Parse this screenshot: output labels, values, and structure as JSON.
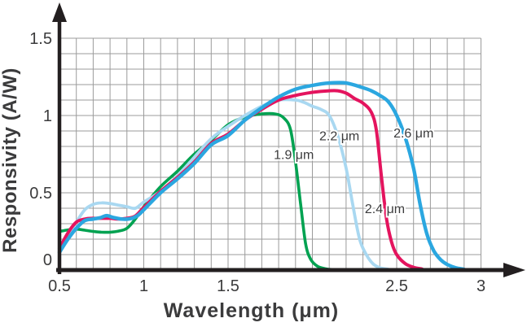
{
  "chart_data": {
    "type": "line",
    "title": "",
    "xlabel": "Wavelength (μm)",
    "ylabel": "Responsivity (A/W)",
    "xlim": [
      0.5,
      3.0
    ],
    "ylim": [
      0,
      1.5
    ],
    "grid": {
      "visible": true,
      "step_x": 0.1,
      "step_y": 0.1,
      "color": "#9b9b9b"
    },
    "axis_color": "#231f20",
    "text_color": "#3b3b3c",
    "x_ticks": [
      {
        "value": 0.5,
        "text": "0.5"
      },
      {
        "value": 1.0,
        "text": "1"
      },
      {
        "value": 1.5,
        "text": "1.5"
      },
      {
        "value": 2.5,
        "text": "2.5"
      },
      {
        "value": 3.0,
        "text": "3"
      }
    ],
    "y_ticks": [
      {
        "value": 0,
        "text": "0"
      },
      {
        "value": 0.5,
        "text": "0.5"
      },
      {
        "value": 1.0,
        "text": "1"
      },
      {
        "value": 1.5,
        "text": "1.5"
      }
    ],
    "series": [
      {
        "name": "1.9 μm",
        "color": "#00a251",
        "label": {
          "text": "1.9 μm",
          "x": 1.89,
          "y": 0.75
        },
        "points": [
          [
            0.5,
            0.25
          ],
          [
            0.55,
            0.26
          ],
          [
            0.6,
            0.265
          ],
          [
            0.65,
            0.258
          ],
          [
            0.7,
            0.25
          ],
          [
            0.75,
            0.245
          ],
          [
            0.8,
            0.245
          ],
          [
            0.85,
            0.252
          ],
          [
            0.9,
            0.27
          ],
          [
            0.95,
            0.33
          ],
          [
            1.0,
            0.41
          ],
          [
            1.1,
            0.54
          ],
          [
            1.2,
            0.64
          ],
          [
            1.3,
            0.75
          ],
          [
            1.4,
            0.84
          ],
          [
            1.5,
            0.94
          ],
          [
            1.6,
            0.99
          ],
          [
            1.7,
            1.01
          ],
          [
            1.78,
            1.01
          ],
          [
            1.83,
            0.985
          ],
          [
            1.87,
            0.91
          ],
          [
            1.9,
            0.7
          ],
          [
            1.93,
            0.43
          ],
          [
            1.96,
            0.17
          ],
          [
            1.99,
            0.07
          ],
          [
            2.03,
            0.025
          ],
          [
            2.08,
            0.008
          ],
          [
            2.12,
            0.003
          ]
        ]
      },
      {
        "name": "2.2 μm",
        "color": "#a9d8f1",
        "label": {
          "text": "2.2 μm",
          "x": 2.16,
          "y": 0.87
        },
        "points": [
          [
            0.5,
            0.12
          ],
          [
            0.55,
            0.225
          ],
          [
            0.6,
            0.31
          ],
          [
            0.65,
            0.39
          ],
          [
            0.7,
            0.425
          ],
          [
            0.75,
            0.435
          ],
          [
            0.8,
            0.43
          ],
          [
            0.85,
            0.42
          ],
          [
            0.9,
            0.41
          ],
          [
            0.95,
            0.4
          ],
          [
            1.0,
            0.44
          ],
          [
            1.1,
            0.51
          ],
          [
            1.2,
            0.61
          ],
          [
            1.3,
            0.73
          ],
          [
            1.4,
            0.85
          ],
          [
            1.5,
            0.93
          ],
          [
            1.6,
            1.0
          ],
          [
            1.7,
            1.06
          ],
          [
            1.8,
            1.1
          ],
          [
            1.9,
            1.1
          ],
          [
            1.95,
            1.085
          ],
          [
            2.0,
            1.06
          ],
          [
            2.05,
            1.04
          ],
          [
            2.1,
            1.0
          ],
          [
            2.15,
            0.87
          ],
          [
            2.2,
            0.66
          ],
          [
            2.24,
            0.42
          ],
          [
            2.28,
            0.2
          ],
          [
            2.32,
            0.1
          ],
          [
            2.36,
            0.04
          ],
          [
            2.4,
            0.015
          ],
          [
            2.45,
            0.005
          ]
        ]
      },
      {
        "name": "2.4 μm",
        "color": "#e4145e",
        "label": {
          "text": "2.4 μm",
          "x": 2.43,
          "y": 0.4
        },
        "points": [
          [
            0.5,
            0.14
          ],
          [
            0.55,
            0.24
          ],
          [
            0.6,
            0.31
          ],
          [
            0.65,
            0.33
          ],
          [
            0.7,
            0.335
          ],
          [
            0.75,
            0.335
          ],
          [
            0.8,
            0.335
          ],
          [
            0.85,
            0.33
          ],
          [
            0.9,
            0.335
          ],
          [
            0.95,
            0.35
          ],
          [
            1.0,
            0.405
          ],
          [
            1.1,
            0.51
          ],
          [
            1.2,
            0.6
          ],
          [
            1.3,
            0.7
          ],
          [
            1.4,
            0.82
          ],
          [
            1.5,
            0.88
          ],
          [
            1.6,
            0.97
          ],
          [
            1.7,
            1.04
          ],
          [
            1.8,
            1.1
          ],
          [
            1.9,
            1.13
          ],
          [
            2.0,
            1.15
          ],
          [
            2.1,
            1.16
          ],
          [
            2.15,
            1.16
          ],
          [
            2.2,
            1.145
          ],
          [
            2.25,
            1.11
          ],
          [
            2.3,
            1.08
          ],
          [
            2.35,
            1.02
          ],
          [
            2.38,
            0.9
          ],
          [
            2.41,
            0.6
          ],
          [
            2.44,
            0.33
          ],
          [
            2.47,
            0.18
          ],
          [
            2.5,
            0.1
          ],
          [
            2.55,
            0.042
          ],
          [
            2.6,
            0.018
          ],
          [
            2.65,
            0.007
          ]
        ]
      },
      {
        "name": "2.6 μm",
        "color": "#2ba7e0",
        "label": {
          "text": "2.6 μm",
          "x": 2.6,
          "y": 0.89
        },
        "points": [
          [
            0.5,
            0.115
          ],
          [
            0.55,
            0.2
          ],
          [
            0.6,
            0.27
          ],
          [
            0.65,
            0.32
          ],
          [
            0.7,
            0.33
          ],
          [
            0.74,
            0.338
          ],
          [
            0.78,
            0.352
          ],
          [
            0.82,
            0.34
          ],
          [
            0.87,
            0.33
          ],
          [
            0.92,
            0.332
          ],
          [
            0.96,
            0.35
          ],
          [
            1.0,
            0.39
          ],
          [
            1.1,
            0.5
          ],
          [
            1.2,
            0.59
          ],
          [
            1.3,
            0.69
          ],
          [
            1.4,
            0.81
          ],
          [
            1.5,
            0.87
          ],
          [
            1.6,
            0.97
          ],
          [
            1.7,
            1.05
          ],
          [
            1.8,
            1.12
          ],
          [
            1.9,
            1.17
          ],
          [
            2.0,
            1.195
          ],
          [
            2.1,
            1.21
          ],
          [
            2.2,
            1.21
          ],
          [
            2.3,
            1.18
          ],
          [
            2.35,
            1.16
          ],
          [
            2.4,
            1.13
          ],
          [
            2.45,
            1.09
          ],
          [
            2.5,
            1.0
          ],
          [
            2.55,
            0.86
          ],
          [
            2.6,
            0.66
          ],
          [
            2.64,
            0.42
          ],
          [
            2.68,
            0.23
          ],
          [
            2.72,
            0.125
          ],
          [
            2.76,
            0.068
          ],
          [
            2.8,
            0.036
          ],
          [
            2.85,
            0.015
          ],
          [
            2.9,
            0.005
          ]
        ]
      }
    ]
  }
}
